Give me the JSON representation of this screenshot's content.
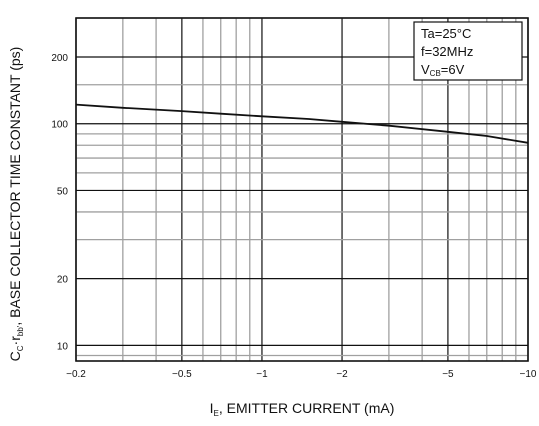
{
  "chart_data": {
    "type": "line",
    "title": "",
    "xlabel": {
      "prefix": "I",
      "sub": "E",
      "rest": ", EMITTER CURRENT  (mA)"
    },
    "ylabel": {
      "prefix": "C",
      "sub1": "C",
      "mid": "·r",
      "sub2": "bb'",
      "rest": ", BASE COLLECTOR TIME CONSTANT (ps)"
    },
    "x_scale": "log",
    "y_scale": "log",
    "xlim": [
      -0.2,
      -10
    ],
    "ylim": [
      8.5,
      300
    ],
    "x_ticks": [
      {
        "value": -0.2,
        "label": "−0.2"
      },
      {
        "value": -0.5,
        "label": "−0.5"
      },
      {
        "value": -1,
        "label": "−1"
      },
      {
        "value": -2,
        "label": "−2"
      },
      {
        "value": -5,
        "label": "−5"
      },
      {
        "value": -10,
        "label": "−10"
      }
    ],
    "y_ticks": [
      {
        "value": 10,
        "label": "10"
      },
      {
        "value": 20,
        "label": "20"
      },
      {
        "value": 50,
        "label": "50"
      },
      {
        "value": 100,
        "label": "100"
      },
      {
        "value": 200,
        "label": "200"
      }
    ],
    "grid": true,
    "conditions": [
      {
        "main": "Ta=25°C",
        "sub": "",
        "tail": ""
      },
      {
        "main": "f=32MHz",
        "sub": "",
        "tail": ""
      },
      {
        "main": "V",
        "sub": "CB",
        "tail": "=6V"
      }
    ],
    "legend_position": "top-right",
    "series": [
      {
        "x": [
          -0.2,
          -0.3,
          -0.5,
          -0.7,
          -1,
          -1.5,
          -2,
          -3,
          -5,
          -7,
          -10
        ],
        "y": [
          122,
          118,
          114,
          111,
          108,
          105,
          102,
          98,
          92,
          88,
          82
        ]
      }
    ],
    "colors": {
      "line": "#111111",
      "grid_major": "#111111",
      "grid_minor": "#a0a0a0",
      "frame": "#111111"
    }
  }
}
